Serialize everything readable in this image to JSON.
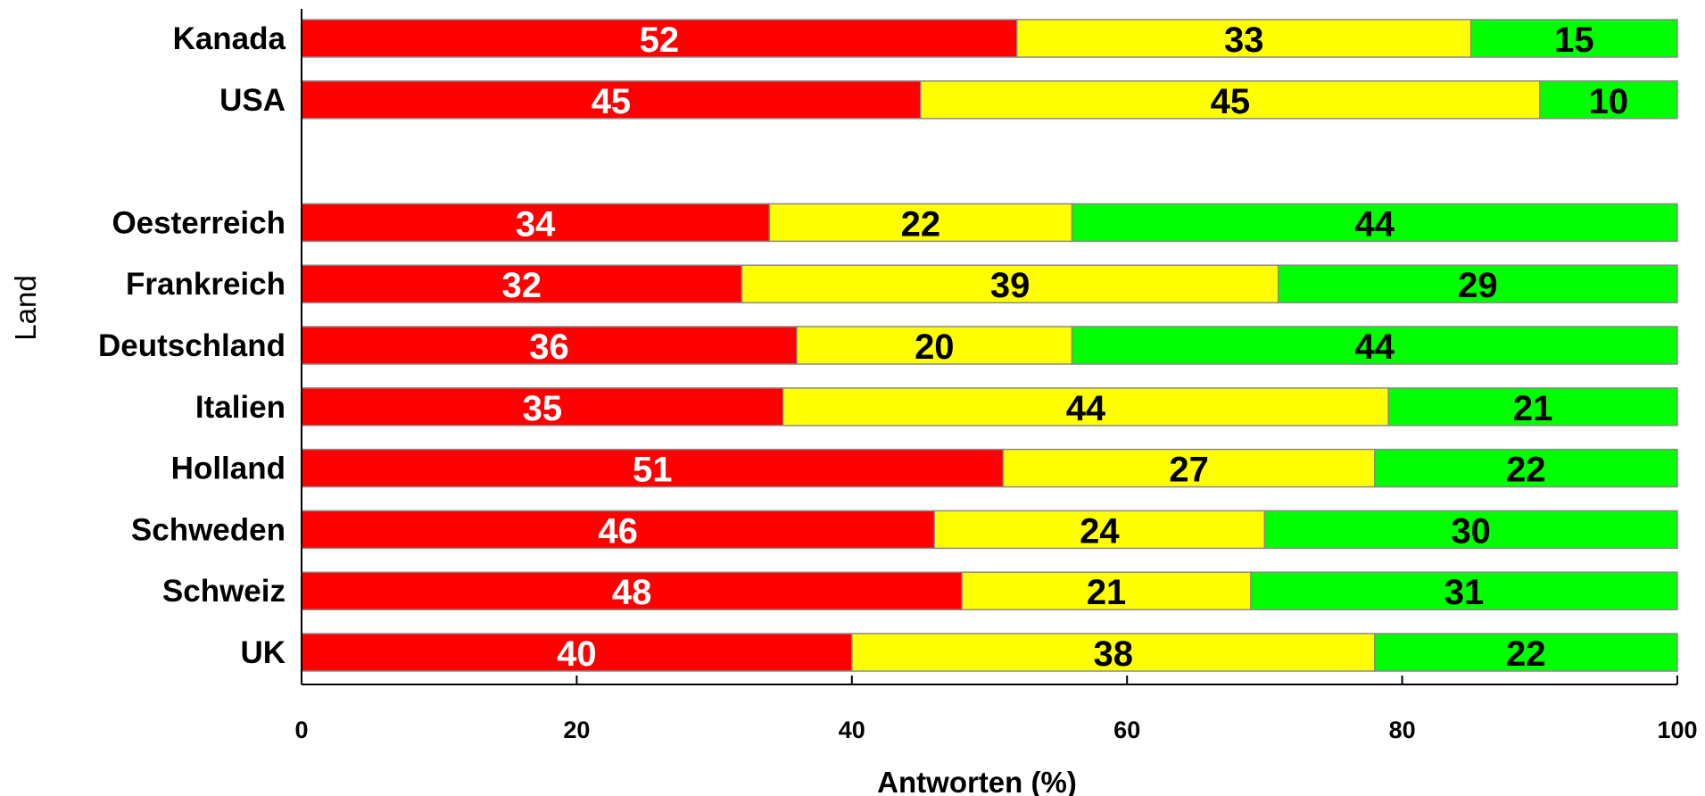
{
  "chart_data": {
    "type": "bar",
    "orientation": "horizontal",
    "stacked": true,
    "categories": [
      "Kanada",
      "USA",
      "",
      "Oesterreich",
      "Frankreich",
      "Deutschland",
      "Italien",
      "Holland",
      "Schweden",
      "Schweiz",
      "UK"
    ],
    "series": [
      {
        "color": "#ff0000",
        "label_color": "#ffffff",
        "values": [
          52,
          45,
          null,
          34,
          32,
          36,
          35,
          51,
          46,
          48,
          40
        ]
      },
      {
        "color": "#ffff00",
        "label_color": "#000000",
        "values": [
          33,
          45,
          null,
          22,
          39,
          20,
          44,
          27,
          24,
          21,
          38
        ]
      },
      {
        "color": "#00ff00",
        "label_color": "#000000",
        "values": [
          15,
          10,
          null,
          44,
          29,
          44,
          21,
          22,
          30,
          31,
          22
        ]
      }
    ],
    "xlabel": "Antworten (%)",
    "ylabel": "Land",
    "xlim": [
      0,
      100
    ],
    "xticks": [
      0,
      20,
      40,
      60,
      80,
      100
    ],
    "grid": false,
    "legend": "none"
  }
}
